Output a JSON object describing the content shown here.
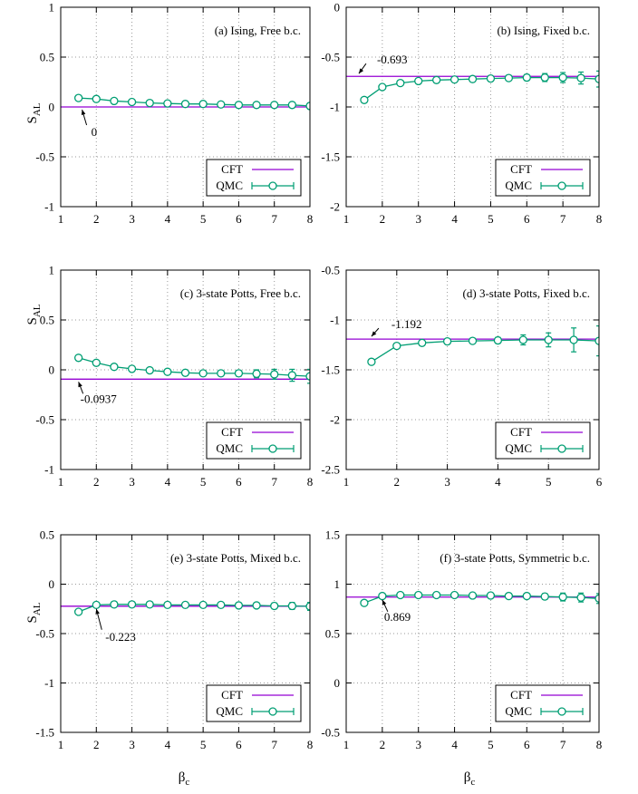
{
  "figure": {
    "ylabel_main": "S",
    "ylabel_sub": "AL",
    "xlabel_main": "β",
    "xlabel_sub": "c",
    "legend": {
      "cft": "CFT",
      "qmc": "QMC"
    },
    "colors": {
      "cft": "#9400d3",
      "qmc": "#009e73"
    }
  },
  "chart_data": [
    {
      "type": "line",
      "title": "(a) Ising, Free b.c.",
      "xlim": [
        1,
        8
      ],
      "ylim": [
        -1,
        1
      ],
      "xticks": [
        1,
        2,
        3,
        4,
        5,
        6,
        7,
        8
      ],
      "xticklabels": [
        "1",
        "2",
        "3",
        "4",
        "5",
        "6",
        "7",
        "8"
      ],
      "yticks": [
        -1,
        -0.5,
        0,
        0.5,
        1
      ],
      "yticklabels": [
        "-1",
        "-0.5",
        "0",
        "0.5",
        "1"
      ],
      "grid": true,
      "cft_value": 0,
      "annotation": "0",
      "series": [
        {
          "name": "QMC",
          "x": [
            1.5,
            2,
            2.5,
            3,
            3.5,
            4,
            4.5,
            5,
            5.5,
            6,
            6.5,
            7,
            7.5,
            8
          ],
          "y": [
            0.09,
            0.08,
            0.06,
            0.05,
            0.04,
            0.035,
            0.03,
            0.03,
            0.025,
            0.02,
            0.02,
            0.02,
            0.02,
            0.01
          ],
          "err": [
            0.005,
            0.005,
            0.005,
            0.005,
            0.005,
            0.005,
            0.008,
            0.01,
            0.01,
            0.01,
            0.015,
            0.02,
            0.025,
            0.03
          ]
        }
      ],
      "legend": "bottom-right"
    },
    {
      "type": "line",
      "title": "(b) Ising, Fixed b.c.",
      "xlim": [
        1,
        8
      ],
      "ylim": [
        -2,
        0
      ],
      "xticks": [
        1,
        2,
        3,
        4,
        5,
        6,
        7,
        8
      ],
      "xticklabels": [
        "1",
        "2",
        "3",
        "4",
        "5",
        "6",
        "7",
        "8"
      ],
      "yticks": [
        -2,
        -1.5,
        -1,
        -0.5,
        0
      ],
      "yticklabels": [
        "-2",
        "-1.5",
        "-1",
        "-0.5",
        "0"
      ],
      "grid": true,
      "cft_value": -0.693,
      "annotation": "-0.693",
      "series": [
        {
          "name": "QMC",
          "x": [
            1.5,
            2,
            2.5,
            3,
            3.5,
            4,
            4.5,
            5,
            5.5,
            6,
            6.5,
            7,
            7.5,
            8
          ],
          "y": [
            -0.93,
            -0.8,
            -0.76,
            -0.74,
            -0.73,
            -0.725,
            -0.72,
            -0.715,
            -0.71,
            -0.705,
            -0.705,
            -0.705,
            -0.71,
            -0.72
          ],
          "err": [
            0.005,
            0.005,
            0.005,
            0.008,
            0.01,
            0.012,
            0.015,
            0.02,
            0.025,
            0.03,
            0.04,
            0.05,
            0.06,
            0.08
          ]
        }
      ],
      "legend": "bottom-right"
    },
    {
      "type": "line",
      "title": "(c) 3-state Potts, Free b.c.",
      "xlim": [
        1,
        8
      ],
      "ylim": [
        -1,
        1
      ],
      "xticks": [
        1,
        2,
        3,
        4,
        5,
        6,
        7,
        8
      ],
      "xticklabels": [
        "1",
        "2",
        "3",
        "4",
        "5",
        "6",
        "7",
        "8"
      ],
      "yticks": [
        -1,
        -0.5,
        0,
        0.5,
        1
      ],
      "yticklabels": [
        "-1",
        "-0.5",
        "0",
        "0.5",
        "1"
      ],
      "grid": true,
      "cft_value": -0.0937,
      "annotation": "-0.0937",
      "series": [
        {
          "name": "QMC",
          "x": [
            1.5,
            2,
            2.5,
            3,
            3.5,
            4,
            4.5,
            5,
            5.5,
            6,
            6.5,
            7,
            7.5,
            8
          ],
          "y": [
            0.12,
            0.07,
            0.03,
            0.01,
            -0.005,
            -0.02,
            -0.03,
            -0.035,
            -0.035,
            -0.035,
            -0.04,
            -0.045,
            -0.055,
            -0.065
          ],
          "err": [
            0.005,
            0.005,
            0.005,
            0.008,
            0.01,
            0.012,
            0.015,
            0.02,
            0.025,
            0.03,
            0.04,
            0.05,
            0.06,
            0.07
          ]
        }
      ],
      "legend": "bottom-right"
    },
    {
      "type": "line",
      "title": "(d) 3-state Potts, Fixed b.c.",
      "xlim": [
        1,
        6
      ],
      "ylim": [
        -2.5,
        -0.5
      ],
      "xticks": [
        1,
        2,
        3,
        4,
        5,
        6
      ],
      "xticklabels": [
        "1",
        "2",
        "3",
        "4",
        "5",
        "6"
      ],
      "yticks": [
        -2.5,
        -2,
        -1.5,
        -1,
        -0.5
      ],
      "yticklabels": [
        "-2.5",
        "-2",
        "-1.5",
        "-1",
        "-0.5"
      ],
      "grid": true,
      "cft_value": -1.192,
      "annotation": "-1.192",
      "series": [
        {
          "name": "QMC",
          "x": [
            1.5,
            2,
            2.5,
            3,
            3.5,
            4,
            4.5,
            5,
            5.5,
            6
          ],
          "y": [
            -1.42,
            -1.26,
            -1.23,
            -1.215,
            -1.21,
            -1.205,
            -1.2,
            -1.2,
            -1.2,
            -1.21
          ],
          "err": [
            0.005,
            0.01,
            0.015,
            0.02,
            0.025,
            0.03,
            0.05,
            0.07,
            0.12,
            0.15
          ]
        }
      ],
      "legend": "bottom-right"
    },
    {
      "type": "line",
      "title": "(e) 3-state Potts, Mixed b.c.",
      "xlim": [
        1,
        8
      ],
      "ylim": [
        -1.5,
        0.5
      ],
      "xticks": [
        1,
        2,
        3,
        4,
        5,
        6,
        7,
        8
      ],
      "xticklabels": [
        "1",
        "2",
        "3",
        "4",
        "5",
        "6",
        "7",
        "8"
      ],
      "yticks": [
        -1.5,
        -1,
        -0.5,
        0,
        0.5
      ],
      "yticklabels": [
        "-1.5",
        "-1",
        "-0.5",
        "0",
        "0.5"
      ],
      "grid": true,
      "cft_value": -0.223,
      "annotation": "-0.223",
      "series": [
        {
          "name": "QMC",
          "x": [
            1.5,
            2,
            2.5,
            3,
            3.5,
            4,
            4.5,
            5,
            5.5,
            6,
            6.5,
            7,
            7.5,
            8
          ],
          "y": [
            -0.28,
            -0.21,
            -0.205,
            -0.205,
            -0.205,
            -0.21,
            -0.21,
            -0.21,
            -0.21,
            -0.215,
            -0.215,
            -0.22,
            -0.22,
            -0.225
          ],
          "err": [
            0.005,
            0.005,
            0.005,
            0.005,
            0.005,
            0.008,
            0.01,
            0.012,
            0.015,
            0.02,
            0.025,
            0.03,
            0.035,
            0.04
          ]
        }
      ],
      "legend": "bottom-right"
    },
    {
      "type": "line",
      "title": "(f) 3-state Potts, Symmetric b.c.",
      "xlim": [
        1,
        8
      ],
      "ylim": [
        -0.5,
        1.5
      ],
      "xticks": [
        1,
        2,
        3,
        4,
        5,
        6,
        7,
        8
      ],
      "xticklabels": [
        "1",
        "2",
        "3",
        "4",
        "5",
        "6",
        "7",
        "8"
      ],
      "yticks": [
        -0.5,
        0,
        0.5,
        1,
        1.5
      ],
      "yticklabels": [
        "-0.5",
        "0",
        "0.5",
        "1",
        "1.5"
      ],
      "grid": true,
      "cft_value": 0.869,
      "annotation": "0.869",
      "series": [
        {
          "name": "QMC",
          "x": [
            1.5,
            2,
            2.5,
            3,
            3.5,
            4,
            4.5,
            5,
            5.5,
            6,
            6.5,
            7,
            7.5,
            8
          ],
          "y": [
            0.81,
            0.88,
            0.89,
            0.89,
            0.89,
            0.89,
            0.885,
            0.885,
            0.88,
            0.88,
            0.875,
            0.87,
            0.865,
            0.855
          ],
          "err": [
            0.005,
            0.005,
            0.005,
            0.005,
            0.008,
            0.01,
            0.012,
            0.015,
            0.02,
            0.025,
            0.03,
            0.04,
            0.045,
            0.05
          ]
        }
      ],
      "legend": "bottom-right"
    }
  ]
}
